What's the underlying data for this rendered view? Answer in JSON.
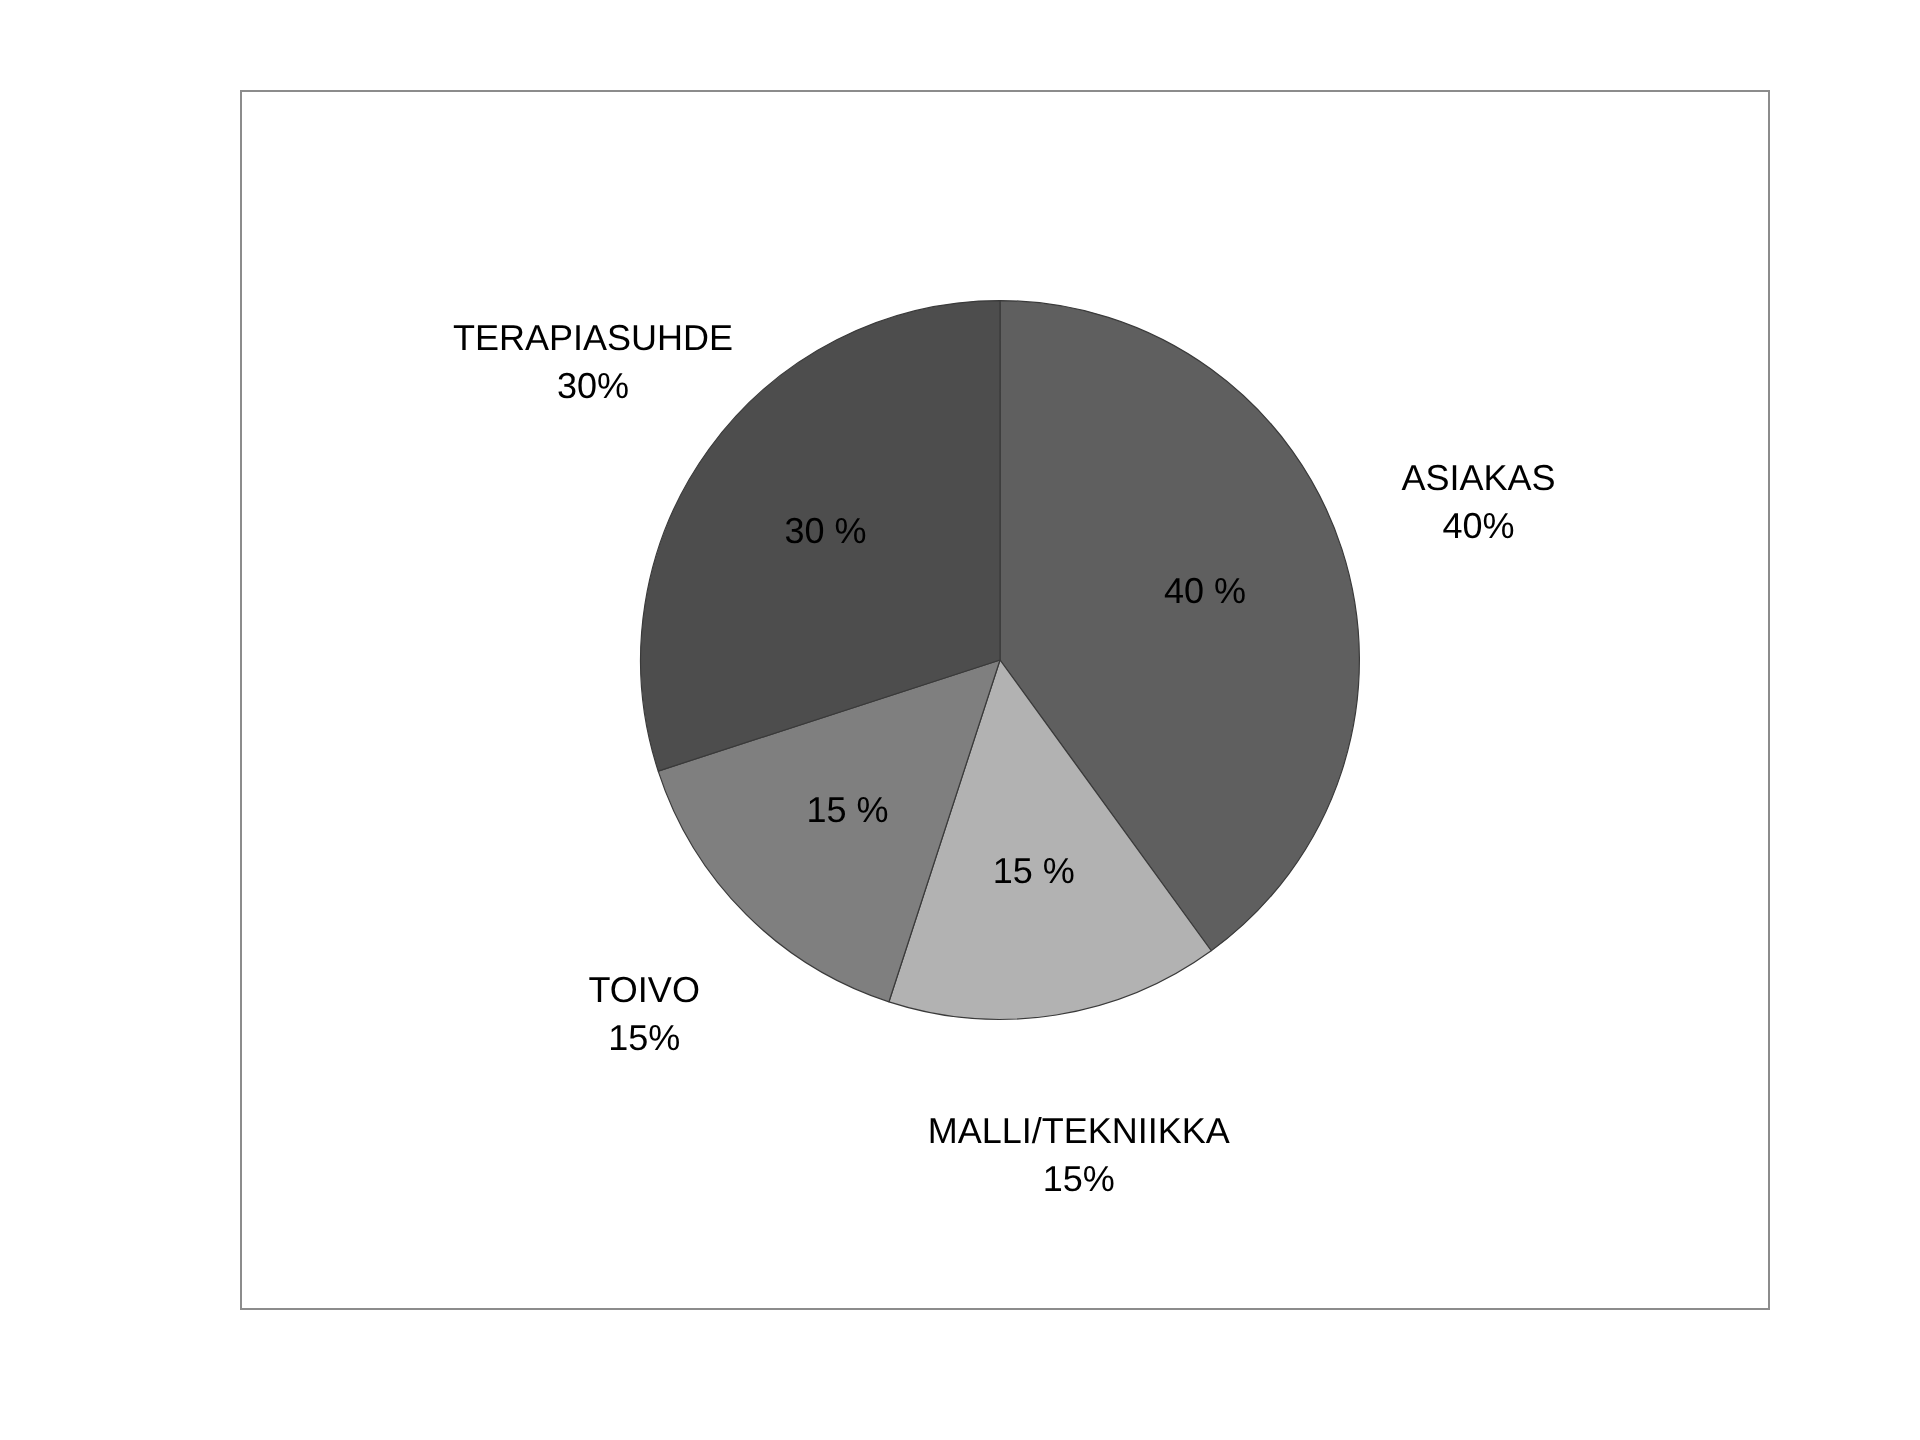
{
  "chart_data": {
    "type": "pie",
    "categories": [
      "ASIAKAS",
      "MALLI/TEKNIIKKA",
      "TOIVO",
      "TERAPIASUHDE"
    ],
    "values": [
      40,
      15,
      15,
      30
    ],
    "colors": [
      "#5f5f5f",
      "#b2b2b2",
      "#7f7f7f",
      "#4d4d4d"
    ],
    "value_labels": [
      "40 %",
      "15 %",
      "15 %",
      "30 %"
    ],
    "annotations": [
      "40%",
      "15%",
      "15%",
      "30%"
    ]
  }
}
